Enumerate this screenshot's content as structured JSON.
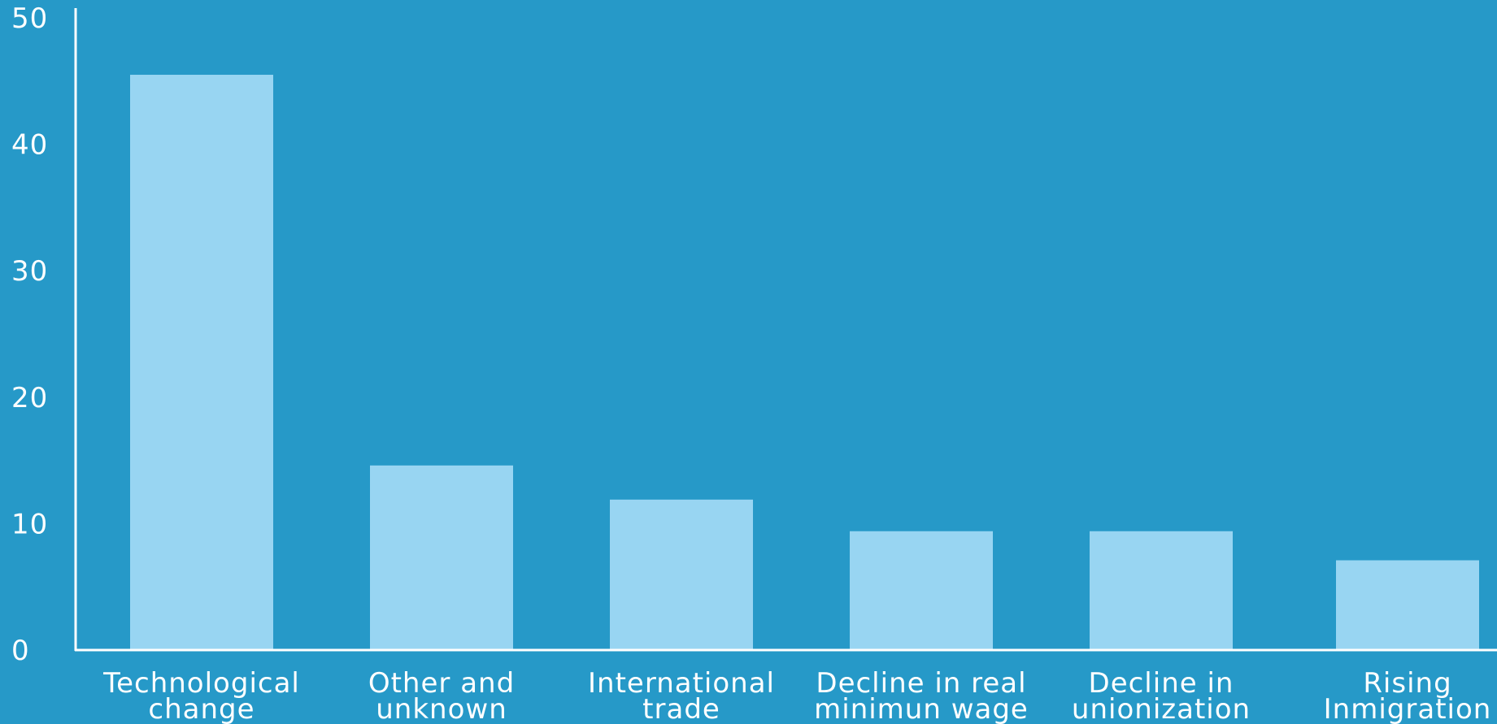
{
  "chart_data": {
    "type": "bar",
    "title": "",
    "xlabel": "",
    "ylabel": "",
    "ylim": [
      0,
      50
    ],
    "yticks": [
      0,
      10,
      20,
      30,
      40,
      50
    ],
    "grid": false,
    "categories": [
      [
        "Technological",
        "change"
      ],
      [
        "Other and",
        "unknown"
      ],
      [
        "International",
        "trade"
      ],
      [
        "Decline in real",
        "minimun wage"
      ],
      [
        "Decline in",
        "unionization"
      ],
      [
        "Rising",
        "Inmigration"
      ]
    ],
    "values": [
      45.5,
      14.6,
      11.9,
      9.4,
      9.4,
      7.1
    ],
    "colors": {
      "background": "#2699c8",
      "bar": "#98d5f2",
      "axis": "#ffffff",
      "text": "#ffffff"
    }
  }
}
